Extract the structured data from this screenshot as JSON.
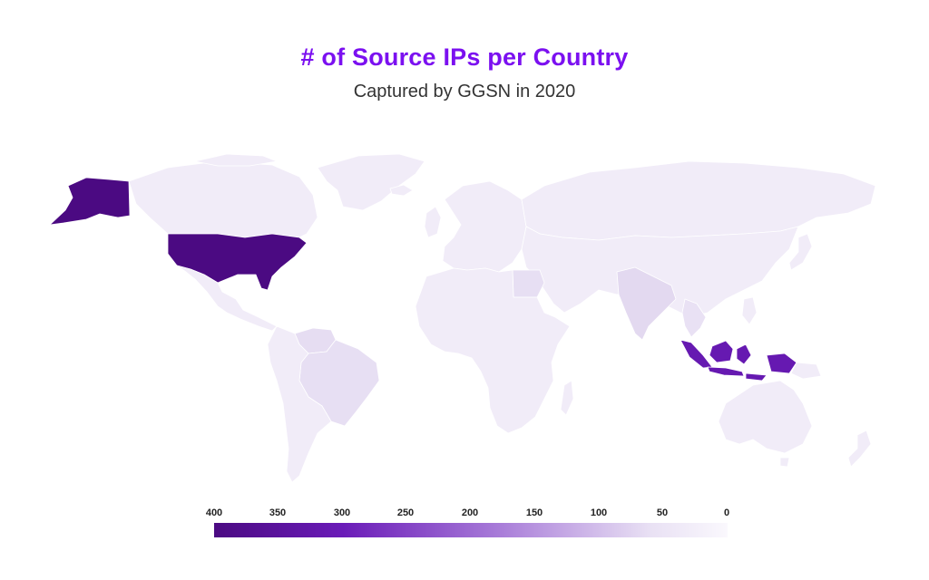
{
  "header": {
    "title": "# of Source IPs per Country",
    "subtitle": "Captured by GGSN in 2020"
  },
  "colors": {
    "title": "#7b10f0",
    "max": "#4b0a82",
    "high": "#6a1bb8",
    "mid_low": "#dcd0ec",
    "low": "#e9e1f4",
    "min": "#f3eff9",
    "border": "#ffffff"
  },
  "legend": {
    "ticks": [
      "400",
      "350",
      "300",
      "250",
      "200",
      "150",
      "100",
      "50",
      "0"
    ]
  },
  "chart_data": {
    "type": "choropleth",
    "scale": {
      "min": 0,
      "max": 400
    },
    "regions": [
      {
        "name": "United States",
        "value": 400
      },
      {
        "name": "Alaska",
        "value": 400
      },
      {
        "name": "Indonesia",
        "value": 330
      },
      {
        "name": "India",
        "value": 40
      },
      {
        "name": "Venezuela",
        "value": 30
      },
      {
        "name": "Brazil",
        "value": 25
      },
      {
        "name": "Egypt",
        "value": 25
      },
      {
        "name": "Thailand",
        "value": 20
      },
      {
        "name": "Canada",
        "value": 5
      },
      {
        "name": "Greenland",
        "value": 5
      },
      {
        "name": "Mexico",
        "value": 5
      },
      {
        "name": "South America",
        "value": 5
      },
      {
        "name": "Europe",
        "value": 5
      },
      {
        "name": "Africa",
        "value": 5
      },
      {
        "name": "Russia",
        "value": 5
      },
      {
        "name": "Asia",
        "value": 5
      },
      {
        "name": "Australia",
        "value": 5
      },
      {
        "name": "New Zealand",
        "value": 5
      }
    ]
  }
}
